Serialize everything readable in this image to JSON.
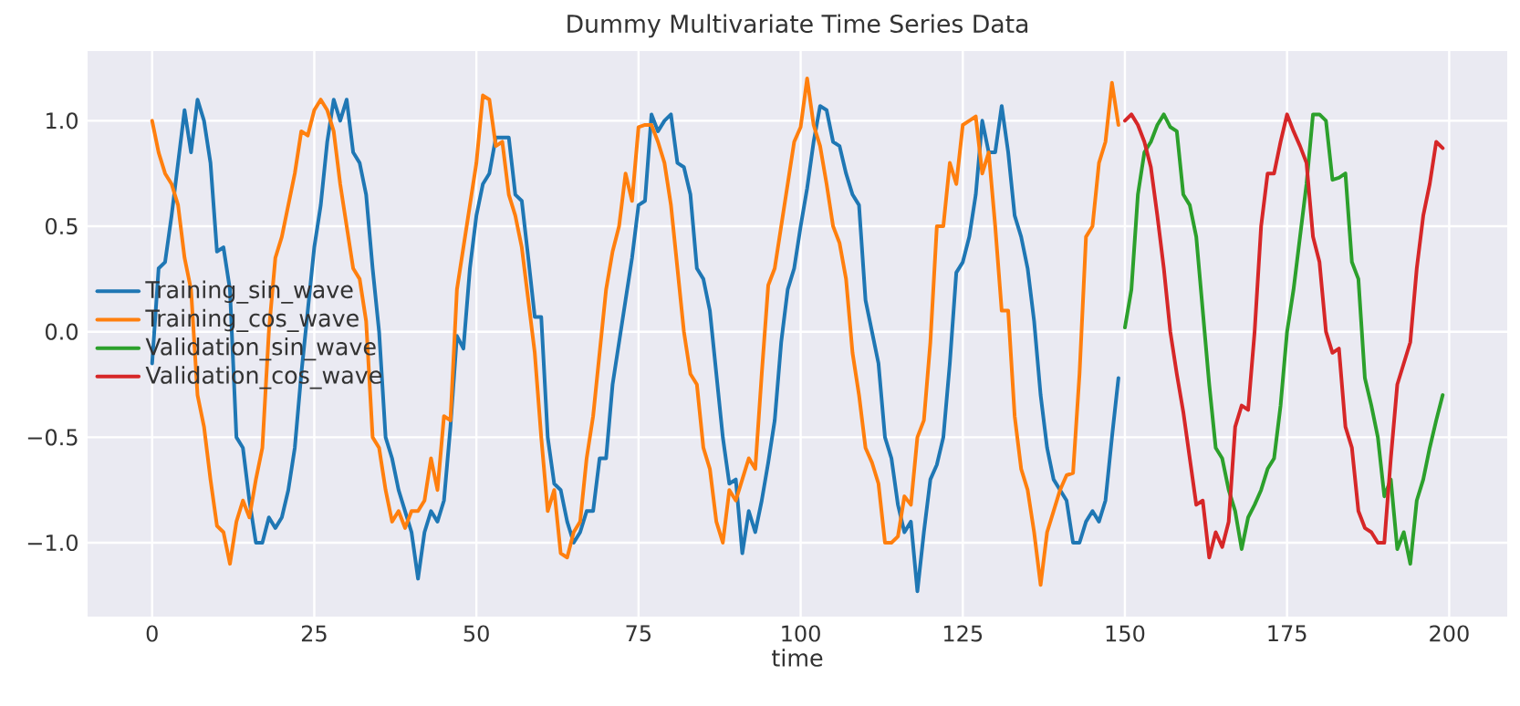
{
  "chart_data": {
    "type": "line",
    "title": "Dummy Multivariate Time Series Data",
    "xlabel": "time",
    "xlim": [
      -9.95,
      208.95
    ],
    "ylim": [
      -1.35,
      1.33
    ],
    "xticks": [
      0,
      25,
      50,
      75,
      100,
      125,
      150,
      175,
      200
    ],
    "yticks": [
      {
        "value": -1.0,
        "label": "−1.0"
      },
      {
        "value": -0.5,
        "label": "−0.5"
      },
      {
        "value": 0.0,
        "label": "0.0"
      },
      {
        "value": 0.5,
        "label": "0.5"
      },
      {
        "value": 1.0,
        "label": "1.0"
      }
    ],
    "grid": true,
    "legend": "left",
    "marker": "none",
    "line_style": "solid",
    "series": [
      {
        "name": "Training_sin_wave",
        "color": "#1f77b4",
        "x": [
          0,
          1,
          2,
          3,
          4,
          5,
          6,
          7,
          8,
          9,
          10,
          11,
          12,
          13,
          14,
          15,
          16,
          17,
          18,
          19,
          20,
          21,
          22,
          23,
          24,
          25,
          26,
          27,
          28,
          29,
          30,
          31,
          32,
          33,
          34,
          35,
          36,
          37,
          38,
          39,
          40,
          41,
          42,
          43,
          44,
          45,
          46,
          47,
          48,
          49,
          50,
          51,
          52,
          53,
          54,
          55,
          56,
          57,
          58,
          59,
          60,
          61,
          62,
          63,
          64,
          65,
          66,
          67,
          68,
          69,
          70,
          71,
          72,
          73,
          74,
          75,
          76,
          77,
          78,
          79,
          80,
          81,
          82,
          83,
          84,
          85,
          86,
          87,
          88,
          89,
          90,
          91,
          92,
          93,
          94,
          95,
          96,
          97,
          98,
          99,
          100,
          101,
          102,
          103,
          104,
          105,
          106,
          107,
          108,
          109,
          110,
          111,
          112,
          113,
          114,
          115,
          116,
          117,
          118,
          119,
          120,
          121,
          122,
          123,
          124,
          125,
          126,
          127,
          128,
          129,
          130,
          131,
          132,
          133,
          134,
          135,
          136,
          137,
          138,
          139,
          140,
          141,
          142,
          143,
          144,
          145,
          146,
          147,
          148,
          149
        ],
        "values": [
          -0.15,
          0.3,
          0.33,
          0.55,
          0.8,
          1.05,
          0.85,
          1.1,
          1.0,
          0.8,
          0.38,
          0.4,
          0.2,
          -0.5,
          -0.55,
          -0.8,
          -1.0,
          -1.0,
          -0.88,
          -0.93,
          -0.88,
          -0.75,
          -0.55,
          -0.2,
          0.1,
          0.4,
          0.6,
          0.9,
          1.1,
          1.0,
          1.1,
          0.85,
          0.8,
          0.65,
          0.3,
          0.0,
          -0.5,
          -0.6,
          -0.75,
          -0.85,
          -0.95,
          -1.17,
          -0.95,
          -0.85,
          -0.9,
          -0.8,
          -0.45,
          -0.02,
          -0.08,
          0.3,
          0.55,
          0.7,
          0.75,
          0.92,
          0.92,
          0.92,
          0.65,
          0.62,
          0.35,
          0.07,
          0.07,
          -0.5,
          -0.72,
          -0.75,
          -0.9,
          -1.0,
          -0.95,
          -0.85,
          -0.85,
          -0.6,
          -0.6,
          -0.25,
          -0.05,
          0.15,
          0.35,
          0.6,
          0.62,
          1.03,
          0.95,
          1.0,
          1.03,
          0.8,
          0.78,
          0.65,
          0.3,
          0.25,
          0.1,
          -0.2,
          -0.5,
          -0.72,
          -0.7,
          -1.05,
          -0.85,
          -0.95,
          -0.8,
          -0.62,
          -0.42,
          -0.05,
          0.2,
          0.3,
          0.5,
          0.68,
          0.9,
          1.07,
          1.05,
          0.9,
          0.88,
          0.75,
          0.65,
          0.6,
          0.15,
          0.0,
          -0.15,
          -0.5,
          -0.6,
          -0.82,
          -0.95,
          -0.9,
          -1.23,
          -0.95,
          -0.7,
          -0.63,
          -0.5,
          -0.15,
          0.28,
          0.33,
          0.45,
          0.65,
          1.0,
          0.85,
          0.85,
          1.07,
          0.85,
          0.55,
          0.45,
          0.3,
          0.05,
          -0.3,
          -0.55,
          -0.7,
          -0.75,
          -0.8,
          -1.0,
          -1.0,
          -0.9,
          -0.85,
          -0.9,
          -0.8,
          -0.5,
          -0.22
        ]
      },
      {
        "name": "Training_cos_wave",
        "color": "#ff7f0e",
        "x": [
          0,
          1,
          2,
          3,
          4,
          5,
          6,
          7,
          8,
          9,
          10,
          11,
          12,
          13,
          14,
          15,
          16,
          17,
          18,
          19,
          20,
          21,
          22,
          23,
          24,
          25,
          26,
          27,
          28,
          29,
          30,
          31,
          32,
          33,
          34,
          35,
          36,
          37,
          38,
          39,
          40,
          41,
          42,
          43,
          44,
          45,
          46,
          47,
          48,
          49,
          50,
          51,
          52,
          53,
          54,
          55,
          56,
          57,
          58,
          59,
          60,
          61,
          62,
          63,
          64,
          65,
          66,
          67,
          68,
          69,
          70,
          71,
          72,
          73,
          74,
          75,
          76,
          77,
          78,
          79,
          80,
          81,
          82,
          83,
          84,
          85,
          86,
          87,
          88,
          89,
          90,
          91,
          92,
          93,
          94,
          95,
          96,
          97,
          98,
          99,
          100,
          101,
          102,
          103,
          104,
          105,
          106,
          107,
          108,
          109,
          110,
          111,
          112,
          113,
          114,
          115,
          116,
          117,
          118,
          119,
          120,
          121,
          122,
          123,
          124,
          125,
          126,
          127,
          128,
          129,
          130,
          131,
          132,
          133,
          134,
          135,
          136,
          137,
          138,
          139,
          140,
          141,
          142,
          143,
          144,
          145,
          146,
          147,
          148,
          149
        ],
        "values": [
          1.0,
          0.85,
          0.75,
          0.7,
          0.6,
          0.35,
          0.2,
          -0.3,
          -0.45,
          -0.7,
          -0.92,
          -0.95,
          -1.1,
          -0.9,
          -0.8,
          -0.88,
          -0.7,
          -0.55,
          0.0,
          0.35,
          0.45,
          0.6,
          0.75,
          0.95,
          0.93,
          1.05,
          1.1,
          1.05,
          0.95,
          0.7,
          0.5,
          0.3,
          0.25,
          0.05,
          -0.5,
          -0.55,
          -0.75,
          -0.9,
          -0.85,
          -0.93,
          -0.85,
          -0.85,
          -0.8,
          -0.6,
          -0.75,
          -0.4,
          -0.42,
          0.2,
          0.4,
          0.6,
          0.8,
          1.12,
          1.1,
          0.88,
          0.9,
          0.65,
          0.55,
          0.4,
          0.15,
          -0.1,
          -0.5,
          -0.85,
          -0.75,
          -1.05,
          -1.07,
          -0.95,
          -0.9,
          -0.6,
          -0.4,
          -0.1,
          0.2,
          0.38,
          0.5,
          0.75,
          0.62,
          0.97,
          0.98,
          0.98,
          0.9,
          0.8,
          0.6,
          0.3,
          0.0,
          -0.2,
          -0.25,
          -0.55,
          -0.65,
          -0.9,
          -1.0,
          -0.75,
          -0.8,
          -0.7,
          -0.6,
          -0.65,
          -0.2,
          0.22,
          0.3,
          0.5,
          0.7,
          0.9,
          0.97,
          1.2,
          0.98,
          0.88,
          0.7,
          0.5,
          0.42,
          0.25,
          -0.1,
          -0.3,
          -0.55,
          -0.62,
          -0.72,
          -1.0,
          -1.0,
          -0.97,
          -0.78,
          -0.82,
          -0.5,
          -0.42,
          -0.05,
          0.5,
          0.5,
          0.8,
          0.7,
          0.98,
          1.0,
          1.02,
          0.75,
          0.85,
          0.5,
          0.1,
          0.1,
          -0.4,
          -0.65,
          -0.75,
          -0.95,
          -1.2,
          -0.95,
          -0.85,
          -0.75,
          -0.68,
          -0.67,
          -0.2,
          0.45,
          0.5,
          0.8,
          0.9,
          1.18,
          0.98
        ]
      },
      {
        "name": "Validation_sin_wave",
        "color": "#2ca02c",
        "x": [
          150,
          151,
          152,
          153,
          154,
          155,
          156,
          157,
          158,
          159,
          160,
          161,
          162,
          163,
          164,
          165,
          166,
          167,
          168,
          169,
          170,
          171,
          172,
          173,
          174,
          175,
          176,
          177,
          178,
          179,
          180,
          181,
          182,
          183,
          184,
          185,
          186,
          187,
          188,
          189,
          190,
          191,
          192,
          193,
          194,
          195,
          196,
          197,
          198,
          199
        ],
        "values": [
          0.02,
          0.2,
          0.65,
          0.85,
          0.9,
          0.98,
          1.03,
          0.97,
          0.95,
          0.65,
          0.6,
          0.45,
          0.1,
          -0.25,
          -0.55,
          -0.6,
          -0.75,
          -0.85,
          -1.03,
          -0.88,
          -0.82,
          -0.75,
          -0.65,
          -0.6,
          -0.35,
          0.0,
          0.2,
          0.45,
          0.7,
          1.03,
          1.03,
          1.0,
          0.72,
          0.73,
          0.75,
          0.33,
          0.25,
          -0.22,
          -0.35,
          -0.5,
          -0.78,
          -0.7,
          -1.03,
          -0.95,
          -1.1,
          -0.8,
          -0.7,
          -0.55,
          -0.42,
          -0.3
        ]
      },
      {
        "name": "Validation_cos_wave",
        "color": "#d62728",
        "x": [
          150,
          151,
          152,
          153,
          154,
          155,
          156,
          157,
          158,
          159,
          160,
          161,
          162,
          163,
          164,
          165,
          166,
          167,
          168,
          169,
          170,
          171,
          172,
          173,
          174,
          175,
          176,
          177,
          178,
          179,
          180,
          181,
          182,
          183,
          184,
          185,
          186,
          187,
          188,
          189,
          190,
          191,
          192,
          193,
          194,
          195,
          196,
          197,
          198,
          199
        ],
        "values": [
          1.0,
          1.03,
          0.98,
          0.9,
          0.78,
          0.55,
          0.3,
          0.0,
          -0.2,
          -0.38,
          -0.6,
          -0.82,
          -0.8,
          -1.07,
          -0.95,
          -1.02,
          -0.9,
          -0.45,
          -0.35,
          -0.37,
          0.0,
          0.5,
          0.75,
          0.75,
          0.9,
          1.03,
          0.95,
          0.88,
          0.8,
          0.45,
          0.33,
          0.0,
          -0.1,
          -0.08,
          -0.45,
          -0.55,
          -0.85,
          -0.93,
          -0.95,
          -1.0,
          -1.0,
          -0.6,
          -0.25,
          -0.15,
          -0.05,
          0.3,
          0.55,
          0.7,
          0.9,
          0.87
        ]
      }
    ]
  }
}
